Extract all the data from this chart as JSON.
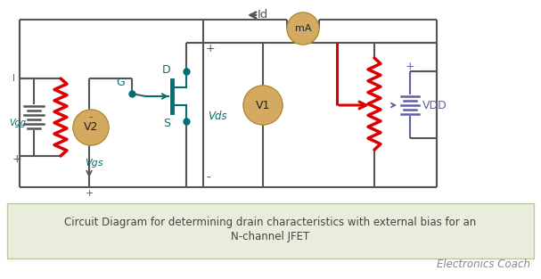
{
  "bg_color": "#ffffff",
  "caption_bg": "#e8eddc",
  "caption_text_line1": "Circuit Diagram for determining drain characteristics with external bias for an",
  "caption_text_line2": "N-channel JFET",
  "watermark": "Electronics Coach",
  "wire_color": "#555555",
  "red_color": "#dd0000",
  "teal_color": "#007070",
  "purple_color": "#6060aa",
  "gold_color": "#d4aa60",
  "label_Id": "Id",
  "label_mA": "mA",
  "label_V1": "V1",
  "label_V2": "V2",
  "label_VDD": "VDD",
  "label_VBB": "Vgg",
  "label_Vgs": "Vgs",
  "label_Vds": "Vds",
  "label_D": "D",
  "label_G": "G",
  "label_S": "S",
  "caption_fontsize": 8.5,
  "watermark_fontsize": 8.5,
  "figsize": [
    6.07,
    3.13
  ],
  "dpi": 100
}
